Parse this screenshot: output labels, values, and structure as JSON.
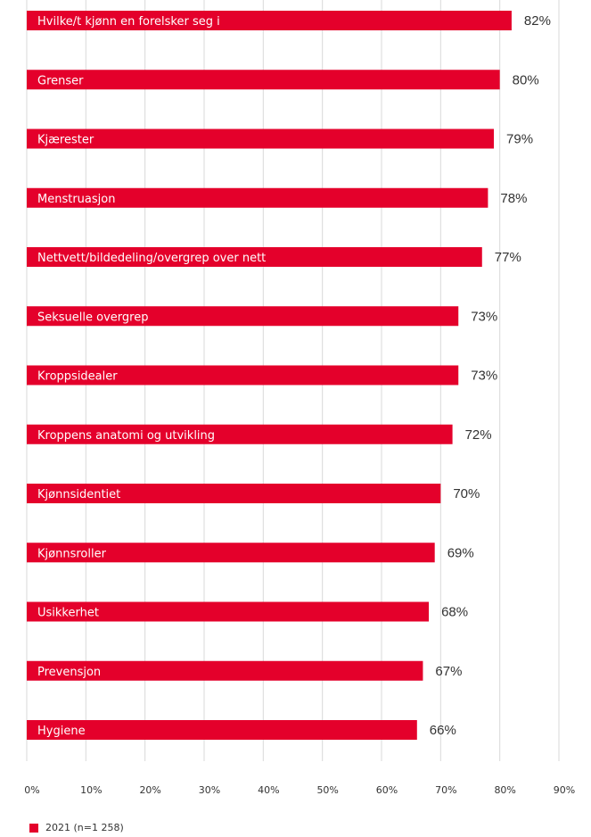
{
  "chart_data": {
    "type": "bar",
    "orientation": "horizontal",
    "categories": [
      "Hvilke/t kjønn en forelsker seg i",
      "Grenser",
      "Kjærester",
      "Menstruasjon",
      "Nettvett/bildedeling/overgrep over nett",
      "Seksuelle overgrep",
      "Kroppsidealer",
      "Kroppens anatomi og utvikling",
      "Kjønnsidentiet",
      "Kjønnsroller",
      "Usikkerhet",
      "Prevensjon",
      "Hygiene"
    ],
    "series": [
      {
        "name": "2021 (n=1 258)",
        "values": [
          82,
          80,
          79,
          78,
          77,
          73,
          73,
          72,
          70,
          69,
          68,
          67,
          66
        ],
        "color": "#e4002b"
      }
    ],
    "value_labels": [
      "82%",
      "80%",
      "79%",
      "78%",
      "77%",
      "73%",
      "73%",
      "72%",
      "70%",
      "69%",
      "68%",
      "67%",
      "66%"
    ],
    "xlim": [
      0,
      90
    ],
    "x_ticks": [
      0,
      10,
      20,
      30,
      40,
      50,
      60,
      70,
      80,
      90
    ],
    "x_tick_labels": [
      "0%",
      "10%",
      "20%",
      "30%",
      "40%",
      "50%",
      "60%",
      "70%",
      "80%",
      "90%"
    ],
    "grid": true,
    "legend_position": "bottom-left",
    "gridline_color": "#d9d9d9"
  },
  "legend": {
    "label": "2021 (n=1 258)",
    "color": "#e4002b"
  }
}
